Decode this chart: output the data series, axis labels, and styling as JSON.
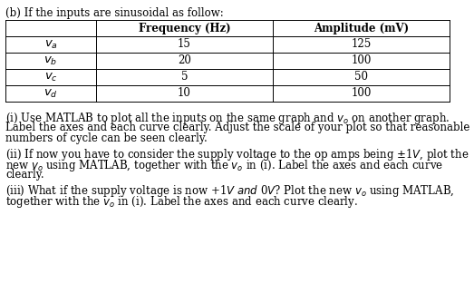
{
  "title": "(b) If the inputs are sinusoidal as follow:",
  "col_headers": [
    "Frequency (Hz)",
    "Amplitude (mV)"
  ],
  "row_labels": [
    "v_a",
    "v_b",
    "v_c",
    "v_d"
  ],
  "freq_vals": [
    "15",
    "20",
    "5",
    "10"
  ],
  "amp_vals": [
    "125",
    "100",
    "50",
    "100"
  ],
  "para_i_line1": "(i) Use MATLAB to plot all the inputs on the same graph and ",
  "para_i_line1b": "v_o",
  "para_i_line1c": " on another graph.",
  "para_i_line2": "Label the axes and each curve clearly. Adjust the scale of your plot so that reasonable",
  "para_i_line3": "numbers of cycle can be seen clearly.",
  "para_ii_line1a": "(ii) If now you have to consider the supply voltage to the op amps being ±1",
  "para_ii_line1b": "V",
  "para_ii_line1c": ", plot the",
  "para_ii_line2a": "new ",
  "para_ii_line2b": "v_o",
  "para_ii_line2c": " using MATLAB, together with the ",
  "para_ii_line2d": "v_o",
  "para_ii_line2e": " in (i). Label the axes and each curve",
  "para_ii_line3": "clearly.",
  "para_iii_line1a": "(iii) What if the supply voltage is now +1",
  "para_iii_line1b": "V and",
  "para_iii_line1c": " 0",
  "para_iii_line1d": "V",
  "para_iii_line1e": "? Plot the new ",
  "para_iii_line1f": "v_o",
  "para_iii_line1g": " using MATLAB,",
  "para_iii_line2a": "together with the ",
  "para_iii_line2b": "v_o",
  "para_iii_line2c": " in (i). Label the axes and each curve clearly.",
  "background_color": "#ffffff",
  "text_color": "#000000",
  "font_size": 8.5,
  "title_font_size": 8.5,
  "table_font_size": 8.5
}
